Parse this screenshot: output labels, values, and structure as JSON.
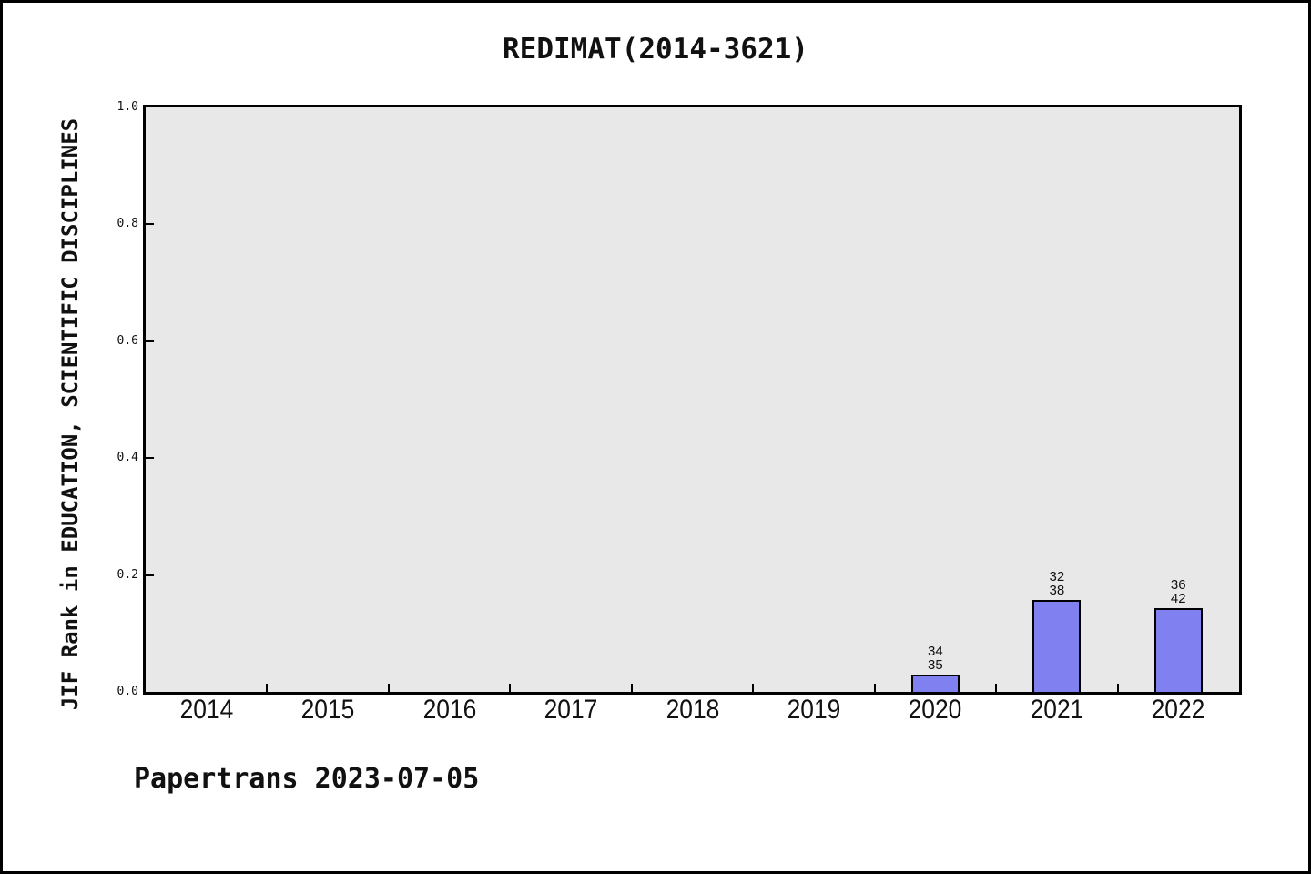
{
  "window": {
    "background_color": "#ffffff",
    "border_color": "#000000"
  },
  "chart_data": {
    "type": "bar",
    "title": "REDIMAT(2014-3621)",
    "xlabel": "",
    "ylabel": "JIF Rank in EDUCATION, SCIENTIFIC DISCIPLINES",
    "categories": [
      "2014",
      "2015",
      "2016",
      "2017",
      "2018",
      "2019",
      "2020",
      "2021",
      "2022"
    ],
    "series": [
      {
        "name": "JIF Rank",
        "values": [
          null,
          null,
          null,
          null,
          null,
          null,
          0.029,
          0.158,
          0.143
        ]
      }
    ],
    "bar_annotations": [
      null,
      null,
      null,
      null,
      null,
      null,
      [
        "34",
        "35"
      ],
      [
        "32",
        "38"
      ],
      [
        "36",
        "42"
      ]
    ],
    "ytick_labels": [
      "0.0",
      "0.2",
      "0.4",
      "0.6",
      "0.8",
      "1.0"
    ],
    "ytick_values": [
      0.0,
      0.2,
      0.4,
      0.6,
      0.8,
      1.0
    ],
    "ylim": [
      0.0,
      1.0
    ],
    "grid": false,
    "legend_position": "none",
    "bar_color": "#8080f0",
    "bar_edge_color": "#000000",
    "plot_background_color": "#e8e8e8",
    "axis_color": "#000000"
  },
  "footer": {
    "text": "Papertrans 2023-07-05"
  }
}
